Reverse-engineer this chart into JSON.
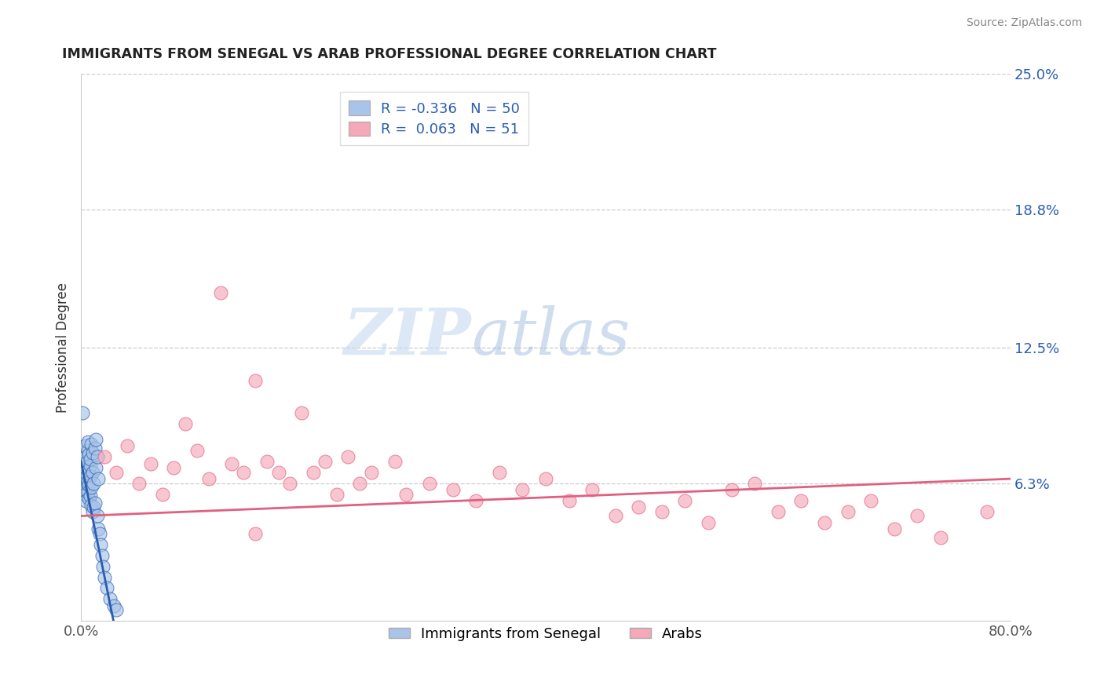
{
  "title": "IMMIGRANTS FROM SENEGAL VS ARAB PROFESSIONAL DEGREE CORRELATION CHART",
  "source": "Source: ZipAtlas.com",
  "ylabel": "Professional Degree",
  "xlabel": "",
  "xlim": [
    0,
    0.8
  ],
  "ylim": [
    0,
    0.25
  ],
  "xtick_labels": [
    "0.0%",
    "80.0%"
  ],
  "xtick_positions": [
    0.0,
    0.8
  ],
  "ytick_labels": [
    "6.3%",
    "12.5%",
    "18.8%",
    "25.0%"
  ],
  "ytick_positions": [
    0.063,
    0.125,
    0.188,
    0.25
  ],
  "legend_labels": [
    "Immigrants from Senegal",
    "Arabs"
  ],
  "legend_r_values": [
    "-0.336",
    "0.063"
  ],
  "legend_n_values": [
    "50",
    "51"
  ],
  "blue_color": "#a8c4e8",
  "pink_color": "#f4a8b8",
  "blue_line_color": "#2a5db0",
  "pink_line_color": "#e06080",
  "watermark_zip": "ZIP",
  "watermark_atlas": "atlas",
  "blue_scatter_x": [
    0.001,
    0.002,
    0.002,
    0.003,
    0.003,
    0.003,
    0.004,
    0.004,
    0.004,
    0.005,
    0.005,
    0.005,
    0.006,
    0.006,
    0.006,
    0.006,
    0.007,
    0.007,
    0.007,
    0.007,
    0.008,
    0.008,
    0.008,
    0.008,
    0.009,
    0.009,
    0.009,
    0.01,
    0.01,
    0.01,
    0.011,
    0.011,
    0.012,
    0.012,
    0.013,
    0.013,
    0.014,
    0.014,
    0.015,
    0.015,
    0.016,
    0.017,
    0.018,
    0.019,
    0.02,
    0.022,
    0.025,
    0.028,
    0.03,
    0.001
  ],
  "blue_scatter_y": [
    0.068,
    0.072,
    0.06,
    0.075,
    0.058,
    0.08,
    0.065,
    0.07,
    0.055,
    0.073,
    0.063,
    0.067,
    0.078,
    0.059,
    0.082,
    0.064,
    0.076,
    0.069,
    0.056,
    0.062,
    0.071,
    0.057,
    0.074,
    0.066,
    0.081,
    0.061,
    0.053,
    0.077,
    0.05,
    0.068,
    0.052,
    0.063,
    0.079,
    0.054,
    0.083,
    0.07,
    0.048,
    0.075,
    0.042,
    0.065,
    0.04,
    0.035,
    0.03,
    0.025,
    0.02,
    0.015,
    0.01,
    0.007,
    0.005,
    0.095
  ],
  "pink_scatter_x": [
    0.02,
    0.03,
    0.04,
    0.05,
    0.06,
    0.07,
    0.08,
    0.09,
    0.1,
    0.11,
    0.12,
    0.13,
    0.14,
    0.15,
    0.16,
    0.17,
    0.18,
    0.19,
    0.2,
    0.21,
    0.22,
    0.23,
    0.24,
    0.25,
    0.27,
    0.28,
    0.3,
    0.32,
    0.34,
    0.36,
    0.38,
    0.4,
    0.42,
    0.44,
    0.46,
    0.48,
    0.5,
    0.52,
    0.54,
    0.56,
    0.58,
    0.6,
    0.62,
    0.64,
    0.66,
    0.68,
    0.7,
    0.72,
    0.74,
    0.78,
    0.15
  ],
  "pink_scatter_y": [
    0.075,
    0.068,
    0.08,
    0.063,
    0.072,
    0.058,
    0.07,
    0.09,
    0.078,
    0.065,
    0.15,
    0.072,
    0.068,
    0.11,
    0.073,
    0.068,
    0.063,
    0.095,
    0.068,
    0.073,
    0.058,
    0.075,
    0.063,
    0.068,
    0.073,
    0.058,
    0.063,
    0.06,
    0.055,
    0.068,
    0.06,
    0.065,
    0.055,
    0.06,
    0.048,
    0.052,
    0.05,
    0.055,
    0.045,
    0.06,
    0.063,
    0.05,
    0.055,
    0.045,
    0.05,
    0.055,
    0.042,
    0.048,
    0.038,
    0.05,
    0.04
  ],
  "blue_line_x": [
    0.0,
    0.028
  ],
  "blue_line_y_start": 0.073,
  "blue_line_y_end": 0.0,
  "pink_line_x": [
    0.0,
    0.8
  ],
  "pink_line_y_start": 0.048,
  "pink_line_y_end": 0.065
}
